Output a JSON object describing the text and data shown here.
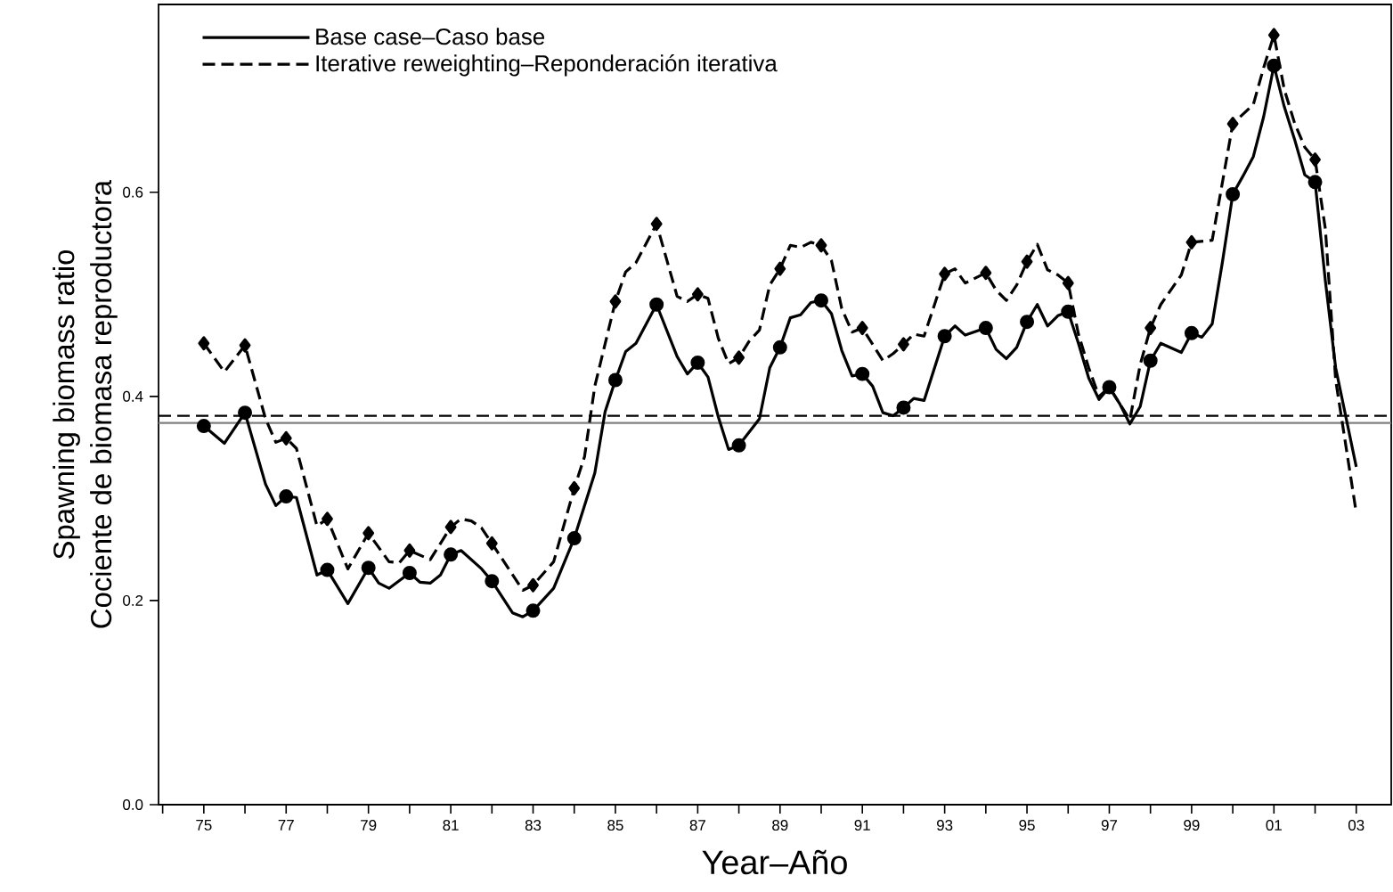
{
  "chart_data": {
    "type": "line",
    "xlabel": "Year–Año",
    "ylabel": "Spawning biomass ratio\nCociente de biomasa reproductora",
    "xlim": [
      1973.9,
      2003.85
    ],
    "ylim": [
      0,
      0.784
    ],
    "xticks": [
      {
        "value": 1974,
        "label": null
      },
      {
        "value": 1975,
        "label": "75"
      },
      {
        "value": 1976,
        "label": null
      },
      {
        "value": 1977,
        "label": "77"
      },
      {
        "value": 1978,
        "label": null
      },
      {
        "value": 1979,
        "label": "79"
      },
      {
        "value": 1980,
        "label": null
      },
      {
        "value": 1981,
        "label": "81"
      },
      {
        "value": 1982,
        "label": null
      },
      {
        "value": 1983,
        "label": "83"
      },
      {
        "value": 1984,
        "label": null
      },
      {
        "value": 1985,
        "label": "85"
      },
      {
        "value": 1986,
        "label": null
      },
      {
        "value": 1987,
        "label": "87"
      },
      {
        "value": 1988,
        "label": null
      },
      {
        "value": 1989,
        "label": "89"
      },
      {
        "value": 1990,
        "label": null
      },
      {
        "value": 1991,
        "label": "91"
      },
      {
        "value": 1992,
        "label": null
      },
      {
        "value": 1993,
        "label": "93"
      },
      {
        "value": 1994,
        "label": null
      },
      {
        "value": 1995,
        "label": "95"
      },
      {
        "value": 1996,
        "label": null
      },
      {
        "value": 1997,
        "label": "97"
      },
      {
        "value": 1998,
        "label": null
      },
      {
        "value": 1999,
        "label": "99"
      },
      {
        "value": 2000,
        "label": null
      },
      {
        "value": 2001,
        "label": "01"
      },
      {
        "value": 2002,
        "label": null
      },
      {
        "value": 2003,
        "label": "03"
      }
    ],
    "yticks": [
      {
        "value": 0,
        "label": "0.0"
      },
      {
        "value": 0.2,
        "label": "0.2"
      },
      {
        "value": 0.4,
        "label": "0.4"
      },
      {
        "value": 0.6,
        "label": "0.6"
      }
    ],
    "grid": false,
    "legend": "top left",
    "series": [
      {
        "name": "Base case–Caso base",
        "color": "#000000",
        "line_style": "solid",
        "x": [
          1975,
          1975.5,
          1976,
          1976.5,
          1976.75,
          1977,
          1977.25,
          1977.75,
          1978,
          1978.5,
          1979,
          1979.25,
          1979.5,
          1980,
          1980.25,
          1980.5,
          1980.75,
          1981,
          1981.25,
          1981.75,
          1982,
          1982.5,
          1982.75,
          1983,
          1983.5,
          1984,
          1984.5,
          1984.75,
          1985,
          1985.25,
          1985.5,
          1986,
          1986.5,
          1986.75,
          1987,
          1987.25,
          1987.5,
          1987.75,
          1988,
          1988.5,
          1988.75,
          1989,
          1989.25,
          1989.5,
          1989.75,
          1990,
          1990.25,
          1990.5,
          1990.75,
          1991,
          1991.25,
          1991.5,
          1991.75,
          1992,
          1992.25,
          1992.5,
          1993,
          1993.25,
          1993.5,
          1994,
          1994.25,
          1994.5,
          1994.75,
          1995,
          1995.25,
          1995.5,
          1995.75,
          1996,
          1996.25,
          1996.5,
          1996.75,
          1997,
          1997.25,
          1997.5,
          1997.75,
          1998,
          1998.25,
          1998.75,
          1999,
          1999.25,
          1999.5,
          1999.75,
          2000,
          2000.25,
          2000.5,
          2000.75,
          2001,
          2001.25,
          2001.5,
          2001.75,
          2002,
          2002.25,
          2002.5,
          2003
        ],
        "values": [
          0.371,
          0.354,
          0.384,
          0.314,
          0.293,
          0.302,
          0.301,
          0.225,
          0.23,
          0.197,
          0.232,
          0.217,
          0.212,
          0.227,
          0.218,
          0.217,
          0.225,
          0.245,
          0.249,
          0.231,
          0.219,
          0.188,
          0.184,
          0.19,
          0.212,
          0.261,
          0.325,
          0.385,
          0.416,
          0.444,
          0.452,
          0.49,
          0.439,
          0.422,
          0.433,
          0.419,
          0.38,
          0.348,
          0.352,
          0.378,
          0.428,
          0.448,
          0.477,
          0.48,
          0.492,
          0.494,
          0.481,
          0.445,
          0.42,
          0.422,
          0.41,
          0.384,
          0.381,
          0.389,
          0.398,
          0.396,
          0.459,
          0.469,
          0.46,
          0.467,
          0.446,
          0.437,
          0.448,
          0.473,
          0.49,
          0.469,
          0.479,
          0.483,
          0.452,
          0.418,
          0.397,
          0.409,
          0.393,
          0.373,
          0.39,
          0.435,
          0.452,
          0.443,
          0.462,
          0.458,
          0.471,
          0.532,
          0.598,
          0.616,
          0.635,
          0.674,
          0.724,
          0.684,
          0.652,
          0.617,
          0.61,
          0.513,
          0.428,
          0.331
        ]
      },
      {
        "type": "scatter",
        "color": "#000000",
        "marker": "circle",
        "x": [
          1975,
          1976,
          1977,
          1978,
          1979,
          1980,
          1981,
          1982,
          1983,
          1984,
          1985,
          1986,
          1987,
          1988,
          1989,
          1990,
          1991,
          1992,
          1993,
          1994,
          1995,
          1996,
          1997,
          1998,
          1999,
          2000,
          2001,
          2002
        ],
        "values": [
          0.371,
          0.384,
          0.302,
          0.23,
          0.232,
          0.227,
          0.245,
          0.219,
          0.19,
          0.261,
          0.416,
          0.49,
          0.433,
          0.352,
          0.448,
          0.494,
          0.422,
          0.389,
          0.459,
          0.467,
          0.473,
          0.483,
          0.409,
          0.435,
          0.462,
          0.598,
          0.724,
          0.61
        ]
      },
      {
        "type": "scatter",
        "color": "#000000",
        "marker": "diamond",
        "x": [
          1975,
          1976,
          1977,
          1978,
          1979,
          1980,
          1981,
          1982,
          1983,
          1984,
          1985,
          1986,
          1987,
          1988,
          1989,
          1990,
          1991,
          1992,
          1993,
          1994,
          1995,
          1996,
          1997,
          1998,
          1999,
          2000,
          2001,
          2002
        ],
        "values": [
          0.452,
          0.45,
          0.359,
          0.28,
          0.266,
          0.249,
          0.272,
          0.256,
          0.215,
          0.31,
          0.493,
          0.569,
          0.5,
          0.438,
          0.525,
          0.548,
          0.467,
          0.451,
          0.52,
          0.521,
          0.532,
          0.511,
          null,
          0.467,
          0.551,
          0.667,
          0.754,
          0.632
        ]
      },
      {
        "name": "Iterative reweighting–Reponderación iterativa",
        "color": "#000000",
        "line_style": "dashed",
        "x": [
          1975,
          1975.5,
          1976,
          1976.5,
          1976.75,
          1977,
          1977.25,
          1977.75,
          1978,
          1978.5,
          1979,
          1979.5,
          1979.75,
          1980,
          1980.5,
          1981,
          1981.25,
          1981.5,
          1981.75,
          1982,
          1982.75,
          1983,
          1983.5,
          1984,
          1984.25,
          1984.5,
          1985,
          1985.25,
          1985.5,
          1986,
          1986.5,
          1986.75,
          1987,
          1987.25,
          1987.5,
          1987.75,
          1988,
          1988.25,
          1988.5,
          1988.75,
          1989,
          1989.25,
          1989.5,
          1989.75,
          1990,
          1990.25,
          1990.5,
          1990.75,
          1991,
          1991.25,
          1991.5,
          1991.75,
          1992,
          1992.25,
          1992.5,
          1993,
          1993.25,
          1993.5,
          1994,
          1994.25,
          1994.5,
          1994.75,
          1995,
          1995.25,
          1995.5,
          1995.75,
          1996,
          1996.25,
          1996.5,
          1996.75,
          1997,
          1997.25,
          1997.5,
          1997.75,
          1998,
          1998.25,
          1998.75,
          1999,
          1999.5,
          2000,
          2000.5,
          2000.75,
          2001,
          2001.25,
          2001.5,
          2001.75,
          2002,
          2002.25,
          2002.5,
          2003
        ],
        "values": [
          0.452,
          0.424,
          0.45,
          0.378,
          0.355,
          0.359,
          0.349,
          0.273,
          0.28,
          0.231,
          0.266,
          0.238,
          0.237,
          0.249,
          0.24,
          0.272,
          0.28,
          0.278,
          0.271,
          0.256,
          0.21,
          0.215,
          0.238,
          0.31,
          0.341,
          0.41,
          0.493,
          0.522,
          0.531,
          0.569,
          0.498,
          0.493,
          0.5,
          0.496,
          0.457,
          0.432,
          0.438,
          0.454,
          0.465,
          0.509,
          0.525,
          0.548,
          0.546,
          0.551,
          0.548,
          0.533,
          0.486,
          0.463,
          0.467,
          0.451,
          0.435,
          0.442,
          0.451,
          0.461,
          0.459,
          0.52,
          0.525,
          0.511,
          0.521,
          0.504,
          0.494,
          0.509,
          0.532,
          0.549,
          0.524,
          0.519,
          0.511,
          0.461,
          0.428,
          0.4,
          0.409,
          0.393,
          0.377,
          0.431,
          0.467,
          0.49,
          0.519,
          0.551,
          0.553,
          0.667,
          0.686,
          0.722,
          0.754,
          0.701,
          0.668,
          0.644,
          0.632,
          0.564,
          0.416,
          0.286
        ]
      }
    ],
    "ref_lines": [
      {
        "axis": "y",
        "value": 0.381,
        "color": "#000000",
        "line_style": "dashed"
      },
      {
        "axis": "y",
        "value": 0.374,
        "color": "#808080",
        "line_style": "solid"
      }
    ]
  }
}
